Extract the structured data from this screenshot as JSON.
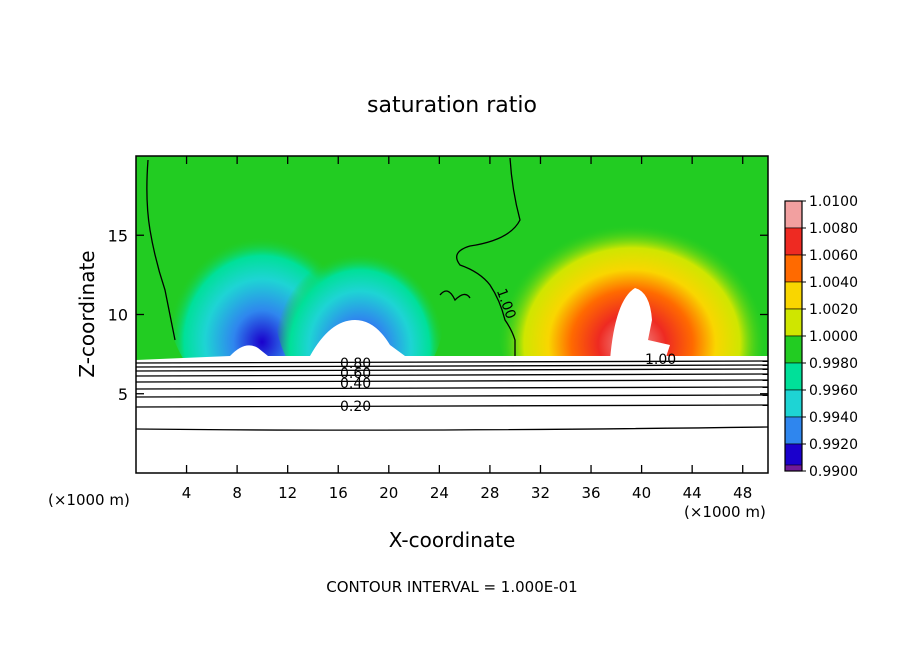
{
  "chart_data": {
    "type": "heatmap",
    "title": "saturation ratio",
    "xlabel": "X-coordinate",
    "ylabel": "Z-coordinate",
    "x_unit_label": "(×1000 m)",
    "x_unit_label_right": "(×1000 m)",
    "footer": "CONTOUR INTERVAL = 1.000E-01",
    "xlim": [
      0,
      50
    ],
    "ylim": [
      0,
      20
    ],
    "x_ticks": [
      4,
      8,
      12,
      16,
      20,
      24,
      28,
      32,
      36,
      40,
      44,
      48
    ],
    "y_ticks": [
      5,
      10,
      15
    ],
    "colorbar": {
      "levels": [
        "1.0100",
        "1.0080",
        "1.0060",
        "1.0040",
        "1.0020",
        "1.0000",
        "0.9980",
        "0.9960",
        "0.9940",
        "0.9920",
        "0.9900"
      ],
      "colors": [
        "#f2a0a0",
        "#ee2a22",
        "#ff6a00",
        "#f9d600",
        "#cfe600",
        "#22cc22",
        "#00e099",
        "#1ed4d4",
        "#2f86ee",
        "#1a00cc",
        "#701a9a"
      ]
    },
    "contour_labels": [
      "1.00",
      "1.00",
      "0.80",
      "0.60",
      "0.40",
      "0.20"
    ]
  }
}
